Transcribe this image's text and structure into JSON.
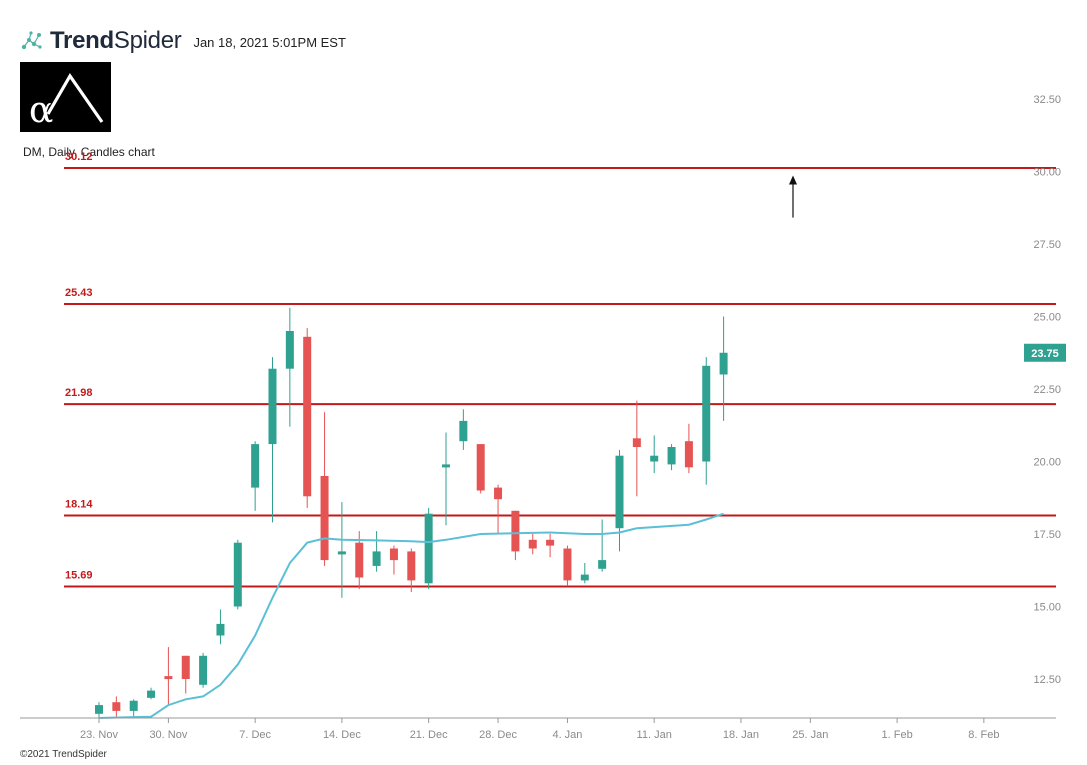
{
  "header": {
    "brand_bold": "Trend",
    "brand_light": "Spider",
    "timestamp": "Jan 18, 2021 5:01PM EST",
    "logo_icon": "trendspider-nodes-icon"
  },
  "alpha_logo_icon": "alpha-lambda-logo-icon",
  "chart_label": "DM, Daily, Candles chart",
  "copyright": "©2021 TrendSpider",
  "colors": {
    "up": "#2ea190",
    "down": "#e55353",
    "level": "#c21a1a",
    "ma": "#5bbfd6",
    "price_tag": "#2ea190",
    "axis": "#999999"
  },
  "chart_data": {
    "type": "candlestick",
    "symbol": "DM",
    "timeframe": "Daily",
    "ylim": [
      11.3,
      35
    ],
    "yticks": [
      12.5,
      15.0,
      17.5,
      20.0,
      22.5,
      25.0,
      27.5,
      30.0,
      32.5
    ],
    "ytick_labels": [
      "12.50",
      "15.00",
      "17.50",
      "20.00",
      "22.50",
      "25.00",
      "27.50",
      "30.00",
      "32.50"
    ],
    "xticks": [
      {
        "i": 0,
        "label": "23. Nov"
      },
      {
        "i": 4,
        "label": "30. Nov"
      },
      {
        "i": 9,
        "label": "7. Dec"
      },
      {
        "i": 14,
        "label": "14. Dec"
      },
      {
        "i": 19,
        "label": "21. Dec"
      },
      {
        "i": 23,
        "label": "28. Dec"
      },
      {
        "i": 27,
        "label": "4. Jan"
      },
      {
        "i": 32,
        "label": "11. Jan"
      },
      {
        "i": 37,
        "label": "18. Jan"
      },
      {
        "i": 41,
        "label": "25. Jan"
      },
      {
        "i": 46,
        "label": "1. Feb"
      },
      {
        "i": 51,
        "label": "8. Feb"
      }
    ],
    "candles": [
      {
        "i": 0,
        "o": 11.3,
        "h": 11.7,
        "l": 11.1,
        "c": 11.6
      },
      {
        "i": 1,
        "o": 11.7,
        "h": 11.9,
        "l": 11.2,
        "c": 11.4
      },
      {
        "i": 2,
        "o": 11.4,
        "h": 11.8,
        "l": 11.2,
        "c": 11.75
      },
      {
        "i": 3,
        "o": 11.85,
        "h": 12.2,
        "l": 11.8,
        "c": 12.1
      },
      {
        "i": 4,
        "o": 12.6,
        "h": 13.6,
        "l": 11.6,
        "c": 12.5
      },
      {
        "i": 5,
        "o": 13.3,
        "h": 13.3,
        "l": 12.0,
        "c": 12.5
      },
      {
        "i": 6,
        "o": 12.3,
        "h": 13.4,
        "l": 12.2,
        "c": 13.3
      },
      {
        "i": 7,
        "o": 14.0,
        "h": 14.9,
        "l": 13.7,
        "c": 14.4
      },
      {
        "i": 8,
        "o": 15.0,
        "h": 17.3,
        "l": 14.9,
        "c": 17.2
      },
      {
        "i": 9,
        "o": 19.1,
        "h": 20.7,
        "l": 18.3,
        "c": 20.6
      },
      {
        "i": 10,
        "o": 20.6,
        "h": 23.6,
        "l": 17.9,
        "c": 23.2
      },
      {
        "i": 11,
        "o": 23.2,
        "h": 25.3,
        "l": 21.2,
        "c": 24.5
      },
      {
        "i": 12,
        "o": 24.3,
        "h": 24.6,
        "l": 18.4,
        "c": 18.8
      },
      {
        "i": 13,
        "o": 19.5,
        "h": 21.7,
        "l": 16.4,
        "c": 16.6
      },
      {
        "i": 14,
        "o": 16.8,
        "h": 18.6,
        "l": 15.3,
        "c": 16.9
      },
      {
        "i": 15,
        "o": 17.2,
        "h": 17.6,
        "l": 15.6,
        "c": 16.0
      },
      {
        "i": 16,
        "o": 16.4,
        "h": 17.6,
        "l": 16.2,
        "c": 16.9
      },
      {
        "i": 17,
        "o": 17.0,
        "h": 17.1,
        "l": 16.1,
        "c": 16.6
      },
      {
        "i": 18,
        "o": 16.9,
        "h": 17.0,
        "l": 15.5,
        "c": 15.9
      },
      {
        "i": 19,
        "o": 15.8,
        "h": 18.4,
        "l": 15.6,
        "c": 18.2
      },
      {
        "i": 20,
        "o": 19.8,
        "h": 21.0,
        "l": 17.8,
        "c": 19.9
      },
      {
        "i": 21,
        "o": 20.7,
        "h": 21.8,
        "l": 20.4,
        "c": 21.4
      },
      {
        "i": 22,
        "o": 20.6,
        "h": 20.6,
        "l": 18.9,
        "c": 19.0
      },
      {
        "i": 23,
        "o": 19.1,
        "h": 19.2,
        "l": 17.5,
        "c": 18.7
      },
      {
        "i": 24,
        "o": 18.3,
        "h": 18.3,
        "l": 16.6,
        "c": 16.9
      },
      {
        "i": 25,
        "o": 17.3,
        "h": 17.5,
        "l": 16.8,
        "c": 17.0
      },
      {
        "i": 26,
        "o": 17.3,
        "h": 17.5,
        "l": 16.7,
        "c": 17.1
      },
      {
        "i": 27,
        "o": 17.0,
        "h": 17.1,
        "l": 15.7,
        "c": 15.9
      },
      {
        "i": 28,
        "o": 15.9,
        "h": 16.5,
        "l": 15.8,
        "c": 16.1
      },
      {
        "i": 29,
        "o": 16.3,
        "h": 18.0,
        "l": 16.2,
        "c": 16.6
      },
      {
        "i": 30,
        "o": 17.7,
        "h": 20.4,
        "l": 16.9,
        "c": 20.2
      },
      {
        "i": 31,
        "o": 20.8,
        "h": 22.1,
        "l": 18.8,
        "c": 20.5
      },
      {
        "i": 32,
        "o": 20.0,
        "h": 20.9,
        "l": 19.6,
        "c": 20.2
      },
      {
        "i": 33,
        "o": 19.9,
        "h": 20.6,
        "l": 19.7,
        "c": 20.5
      },
      {
        "i": 34,
        "o": 20.7,
        "h": 21.3,
        "l": 19.6,
        "c": 19.8
      },
      {
        "i": 35,
        "o": 20.0,
        "h": 23.6,
        "l": 19.2,
        "c": 23.3
      },
      {
        "i": 36,
        "o": 23.0,
        "h": 25.0,
        "l": 21.4,
        "c": 23.75
      }
    ],
    "ma_series": [
      {
        "i": 0,
        "v": 10.5
      },
      {
        "i": 3,
        "v": 11.2
      },
      {
        "i": 4,
        "v": 11.6
      },
      {
        "i": 5,
        "v": 11.8
      },
      {
        "i": 6,
        "v": 11.9
      },
      {
        "i": 7,
        "v": 12.3
      },
      {
        "i": 8,
        "v": 13.0
      },
      {
        "i": 9,
        "v": 14.0
      },
      {
        "i": 10,
        "v": 15.3
      },
      {
        "i": 11,
        "v": 16.5
      },
      {
        "i": 12,
        "v": 17.2
      },
      {
        "i": 13,
        "v": 17.35
      },
      {
        "i": 14,
        "v": 17.3
      },
      {
        "i": 16,
        "v": 17.28
      },
      {
        "i": 18,
        "v": 17.25
      },
      {
        "i": 19,
        "v": 17.22
      },
      {
        "i": 20,
        "v": 17.3
      },
      {
        "i": 22,
        "v": 17.5
      },
      {
        "i": 26,
        "v": 17.55
      },
      {
        "i": 28,
        "v": 17.5
      },
      {
        "i": 29,
        "v": 17.5
      },
      {
        "i": 30,
        "v": 17.55
      },
      {
        "i": 31,
        "v": 17.7
      },
      {
        "i": 34,
        "v": 17.82
      },
      {
        "i": 35,
        "v": 18.0
      },
      {
        "i": 36,
        "v": 18.2
      }
    ],
    "levels": [
      {
        "value": 30.12,
        "label": "30.12"
      },
      {
        "value": 25.43,
        "label": "25.43"
      },
      {
        "value": 21.98,
        "label": "21.98"
      },
      {
        "value": 18.14,
        "label": "18.14"
      },
      {
        "value": 15.69,
        "label": "15.69"
      }
    ],
    "arrow": {
      "i": 40,
      "from": 29.1,
      "to": 30.0
    },
    "last_price": {
      "value": 23.75,
      "label": "23.75"
    }
  }
}
